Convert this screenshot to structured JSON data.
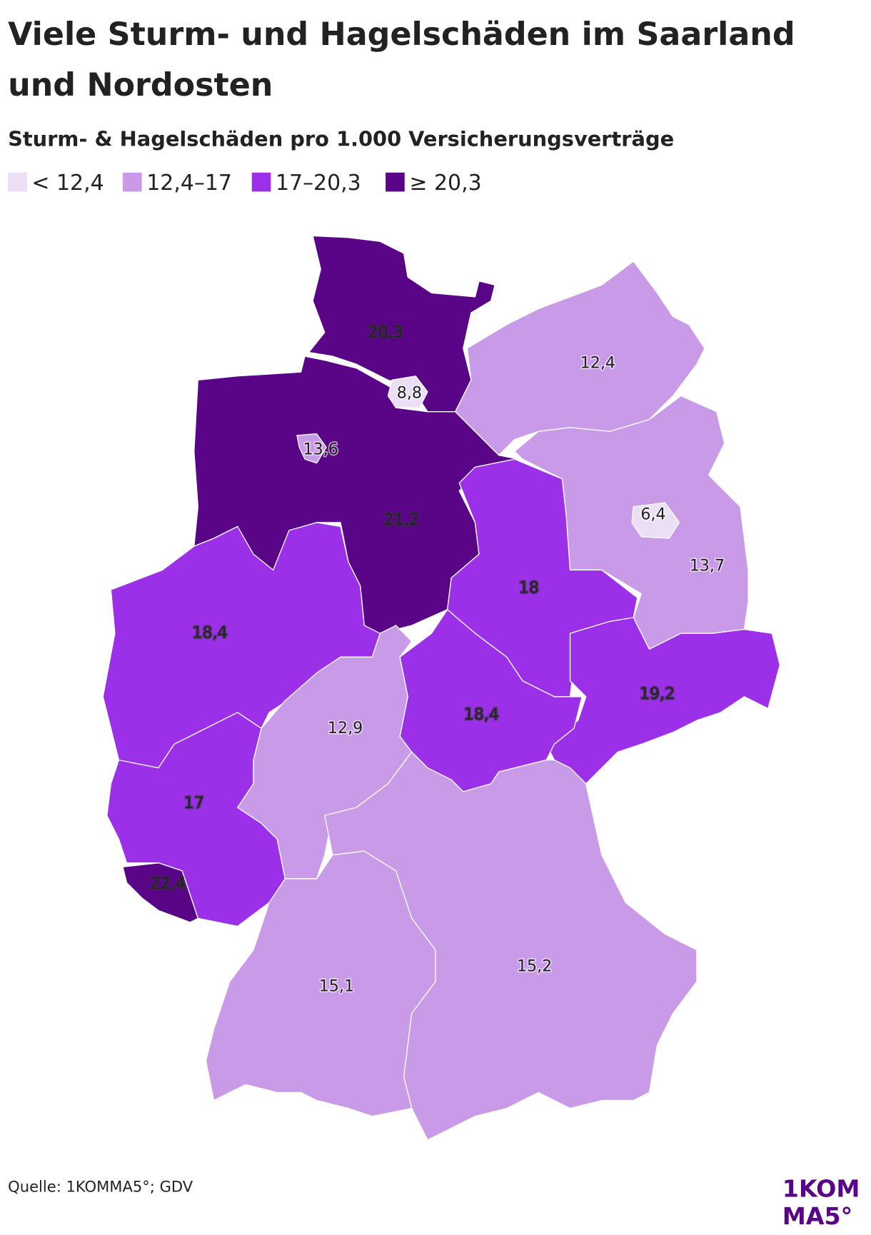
{
  "chart_data": {
    "type": "choropleth",
    "title": [
      "Viele Sturm- und Hagelschäden im Saarland",
      "und Nordosten"
    ],
    "subtitle": "Sturm- & Hagelschäden pro 1.000 Versicherungsverträge",
    "legend": {
      "labels": [
        "< 12,4",
        "12,4–17",
        "17–20,3",
        "≥ 20,3"
      ],
      "colors": [
        "#ecdff5",
        "#c89ae8",
        "#9b30e8",
        "#5a0587"
      ],
      "breaks": [
        12.4,
        17,
        20.3
      ]
    },
    "values": [
      20.3,
      21.2,
      12.4,
      13.7,
      18,
      19.2,
      18.4,
      18.4,
      12.9,
      17,
      22.4,
      15.1,
      15.2,
      8.8,
      13.6,
      6.4
    ],
    "value_labels": [
      "20,3",
      "21,2",
      "12,4",
      "13,7",
      "18",
      "19,2",
      "18,4",
      "18,4",
      "12,9",
      "17",
      "22,4",
      "15,1",
      "15,2",
      "8,8",
      "13,6",
      "6,4"
    ],
    "source": "Quelle: 1KOMMA5°; GDV",
    "logo": [
      "1KOM",
      "MA5°"
    ]
  }
}
